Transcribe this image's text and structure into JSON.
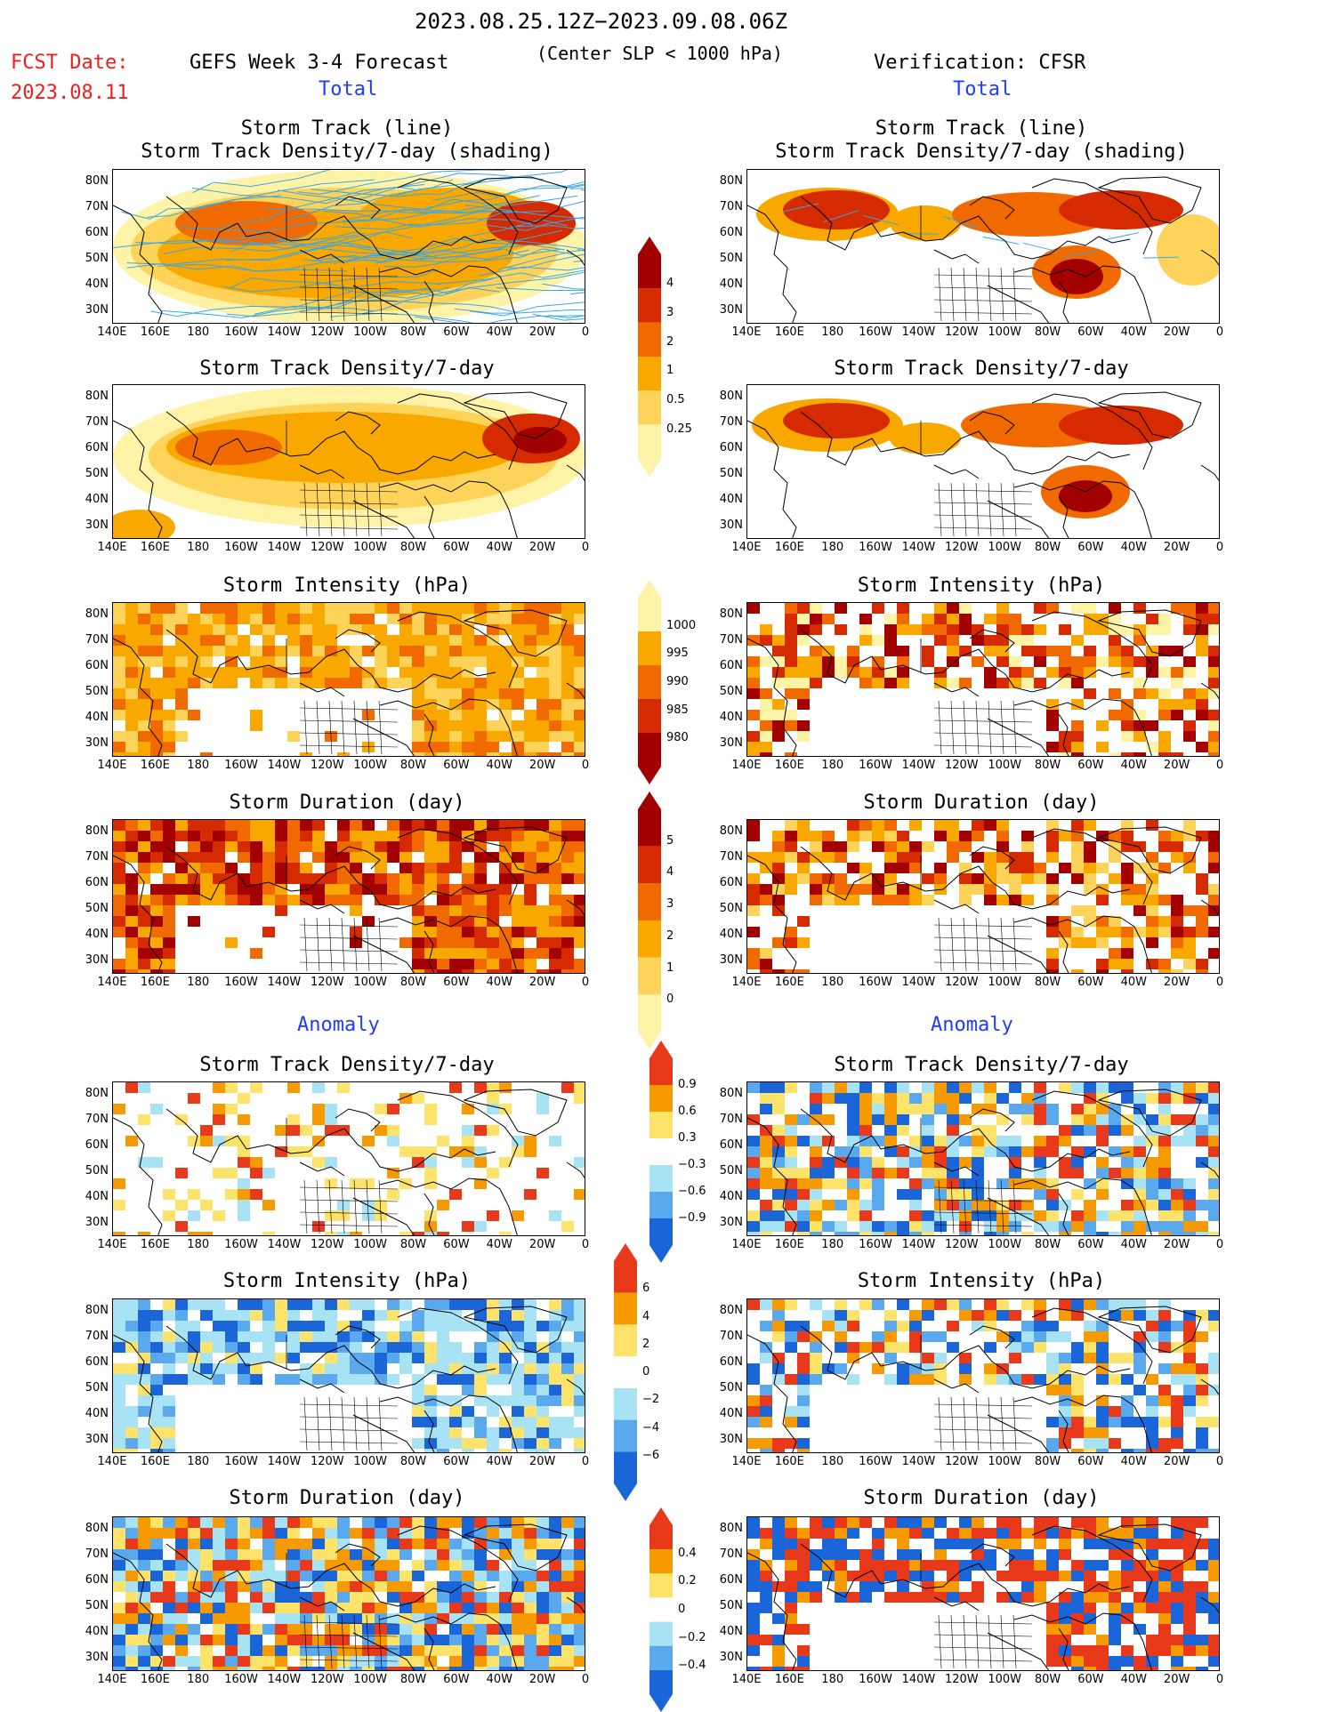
{
  "header": {
    "date_range": "2023.08.25.12Z−2023.09.08.06Z",
    "fcst_label": "FCST Date:",
    "fcst_date": "2023.08.11",
    "left_title": "GEFS Week 3-4 Forecast",
    "center_sub": "(Center SLP < 1000 hPa)",
    "right_title": "Verification: CFSR",
    "total_label": "Total",
    "anomaly_label": "Anomaly"
  },
  "panel_titles": {
    "track_line": "Storm Track (line)",
    "track_shading": "Storm Track Density/7-day (shading)",
    "density": "Storm Track Density/7-day",
    "intensity": "Storm Intensity (hPa)",
    "duration": "Storm Duration (day)"
  },
  "axes": {
    "lat_labels": [
      "80N",
      "70N",
      "60N",
      "50N",
      "40N",
      "30N"
    ],
    "lon_labels": [
      "140E",
      "160E",
      "180",
      "160W",
      "140W",
      "120W",
      "100W",
      "80W",
      "60W",
      "40W",
      "20W",
      "0"
    ]
  },
  "colorbars": {
    "density": {
      "labels": [
        "4",
        "3",
        "2",
        "1",
        "0.5",
        "0.25"
      ],
      "colors": [
        "#a30000",
        "#d62a00",
        "#f06a00",
        "#f9a800",
        "#fdd35a",
        "#fff3a8"
      ]
    },
    "intensity": {
      "labels": [
        "1000",
        "995",
        "990",
        "985",
        "980"
      ],
      "colors": [
        "#fff3a8",
        "#f9a800",
        "#f06a00",
        "#d62a00",
        "#a30000"
      ]
    },
    "duration": {
      "labels": [
        "5",
        "4",
        "3",
        "2",
        "1",
        "0"
      ],
      "colors": [
        "#a30000",
        "#d62a00",
        "#f06a00",
        "#f9a800",
        "#fdd35a",
        "#fff3a8"
      ]
    },
    "anom_density": {
      "labels": [
        "0.9",
        "0.6",
        "0.3",
        "−0.3",
        "−0.6",
        "−0.9"
      ],
      "colors": [
        "#e83a1a",
        "#f79a00",
        "#fde36a",
        "#ffffff",
        "#a8e2f5",
        "#5aa8ee",
        "#1a66d8"
      ]
    },
    "anom_intensity": {
      "labels": [
        "6",
        "4",
        "2",
        "0",
        "−2",
        "−4",
        "−6"
      ],
      "colors": [
        "#e83a1a",
        "#f79a00",
        "#fde36a",
        "#ffffff",
        "#a8e2f5",
        "#5aa8ee",
        "#1a66d8"
      ]
    },
    "anom_duration": {
      "labels": [
        "0.4",
        "0.2",
        "0",
        "−0.2",
        "−0.4"
      ],
      "colors": [
        "#e83a1a",
        "#f79a00",
        "#fde36a",
        "#ffffff",
        "#a8e2f5",
        "#5aa8ee",
        "#1a66d8"
      ]
    }
  }
}
